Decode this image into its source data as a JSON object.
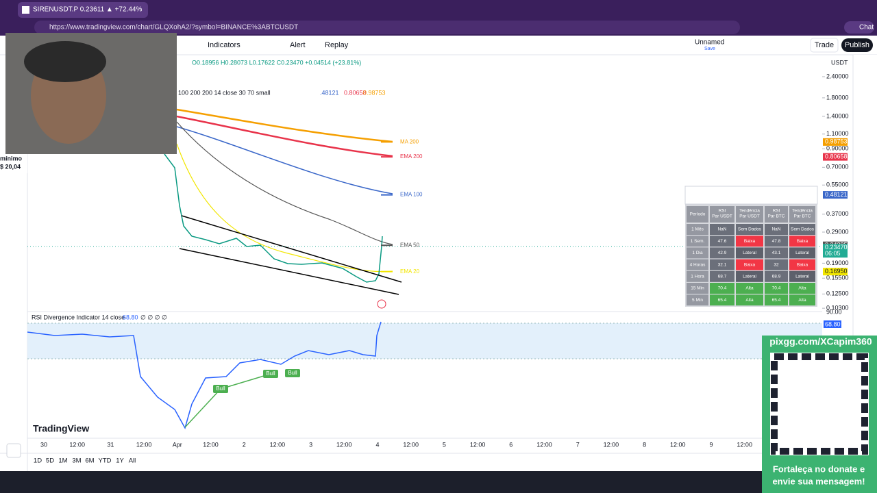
{
  "browser": {
    "tab_title": "SIRENUSDT.P 0.23611 ▲ +72.44%",
    "url": "https://www.tradingview.com/chart/GLQXohA2/?symbol=BINANCE%3ABTCUSDT",
    "chat": "Chat"
  },
  "webcam": {
    "caption_1": "mínimo",
    "caption_2": "$ 20,04"
  },
  "toolbar": {
    "indicators": "Indicators",
    "alert": "Alert",
    "replay": "Replay",
    "layout_name": "Unnamed",
    "layout_status": "Save",
    "trade": "Trade",
    "publish": "Publish",
    "currency": "USDT"
  },
  "legend": {
    "ohlc": "O0.18956 H0.28073 L0.17622 C0.23470 +0.04514 (+23.81%)",
    "indicator_params": "100 200 200 14 close 30 70 small",
    "indicator_values": [
      ".48121",
      "0.80658",
      "0.98753"
    ]
  },
  "ma_labels": [
    {
      "text": "MA 200",
      "color": "#f59f00"
    },
    {
      "text": "EMA 200",
      "color": "#e8334a"
    },
    {
      "text": "EMA 100",
      "color": "#3a67c9"
    },
    {
      "text": "EMA 50",
      "color": "#555555"
    },
    {
      "text": "EMA 20",
      "color": "#f2e600"
    }
  ],
  "price_axis": {
    "ticks": [
      {
        "value": 2.4,
        "label": "2.40000"
      },
      {
        "value": 1.8,
        "label": "1.80000"
      },
      {
        "value": 1.4,
        "label": "1.40000"
      },
      {
        "value": 1.1,
        "label": "1.10000"
      },
      {
        "value": 0.9,
        "label": "0.90000"
      },
      {
        "value": 0.7,
        "label": "0.70000"
      },
      {
        "value": 0.55,
        "label": "0.55000"
      },
      {
        "value": 0.37,
        "label": "0.37000"
      },
      {
        "value": 0.29,
        "label": "0.29000"
      },
      {
        "value": 0.19,
        "label": "0.19000"
      },
      {
        "value": 0.155,
        "label": "0.15500"
      },
      {
        "value": 0.125,
        "label": "0.12500"
      },
      {
        "value": 0.103,
        "label": "0.10300"
      }
    ],
    "badges": [
      {
        "value": 0.98753,
        "label": "0.98753",
        "color": "#f59f00"
      },
      {
        "value": 0.80658,
        "label": "0.80658",
        "color": "#e8334a"
      },
      {
        "value": 0.48121,
        "label": "0.48121",
        "color": "#3a67c9"
      },
      {
        "value": 0.24235,
        "label": "0.24235",
        "color": "#555555"
      },
      {
        "value": 0.2347,
        "label": "0.23470",
        "color": "#22ab94"
      },
      {
        "value": 0.1695,
        "label": "0.16950",
        "color": "#f2e600"
      }
    ],
    "countdown": "06:05"
  },
  "rsi_table": {
    "header": [
      [
        "Período"
      ],
      [
        "RSI",
        "Par USDT"
      ],
      [
        "Tendência",
        "Par USDT"
      ],
      [
        "RSI",
        "Par BTC"
      ],
      [
        "Tendência",
        "Par BTC"
      ]
    ],
    "rows": [
      [
        "1 Mês",
        "NaN",
        "Sem Dados",
        "NaN",
        "Sem Dados"
      ],
      [
        "1 Sem.",
        "47.6",
        "Baixa",
        "47.8",
        "Baixa"
      ],
      [
        "1 Dia",
        "42.9",
        "Lateral",
        "43.1",
        "Lateral"
      ],
      [
        "4 Horas",
        "32.1",
        "Baixa",
        "32",
        "Baixa"
      ],
      [
        "1 Hora",
        "68.7",
        "Lateral",
        "68.9",
        "Lateral"
      ],
      [
        "15 Min",
        "70.4",
        "Alta",
        "70.4",
        "Alta"
      ],
      [
        "5 Min",
        "65.4",
        "Alta",
        "65.4",
        "Alta"
      ]
    ],
    "trend_colors": {
      "Sem Dados": "#6b6f7a",
      "Baixa": "#f23645",
      "Lateral": "#5d606b",
      "Alta": "#4caf50"
    },
    "rsi_colors": {
      "NaN": "#6b6f7a",
      "47.6": "#6b6f7a",
      "47.8": "#6b6f7a",
      "42.9": "#6b6f7a",
      "43.1": "#6b6f7a",
      "32.1": "#6b6f7a",
      "32": "#6b6f7a",
      "68.7": "#6b6f7a",
      "68.9": "#6b6f7a",
      "70.4": "#4caf50",
      "65.4": "#4caf50"
    }
  },
  "rsi_pane": {
    "title": "RSI Divergence Indicator 14 close",
    "value": "68.80",
    "extras": "∅ ∅ ∅ ∅",
    "axis_label": "90.00",
    "badge": "68.80",
    "signals": [
      "Bull",
      "Bull",
      "Bull"
    ]
  },
  "brand": "TradingView",
  "time_axis": [
    "30",
    "12:00",
    "31",
    "12:00",
    "Apr",
    "12:00",
    "2",
    "12:00",
    "3",
    "12:00",
    "4",
    "12:00",
    "5",
    "12:00",
    "6",
    "12:00",
    "7",
    "12:00",
    "8",
    "12:00",
    "9",
    "12:00"
  ],
  "timeframes": [
    "1D",
    "5D",
    "1M",
    "3M",
    "6M",
    "YTD",
    "1Y",
    "All"
  ],
  "donation": {
    "url": "pixgg.com/XCapim360",
    "message_1": "Fortaleça no donate e",
    "message_2": "envie sua mensagem!"
  }
}
